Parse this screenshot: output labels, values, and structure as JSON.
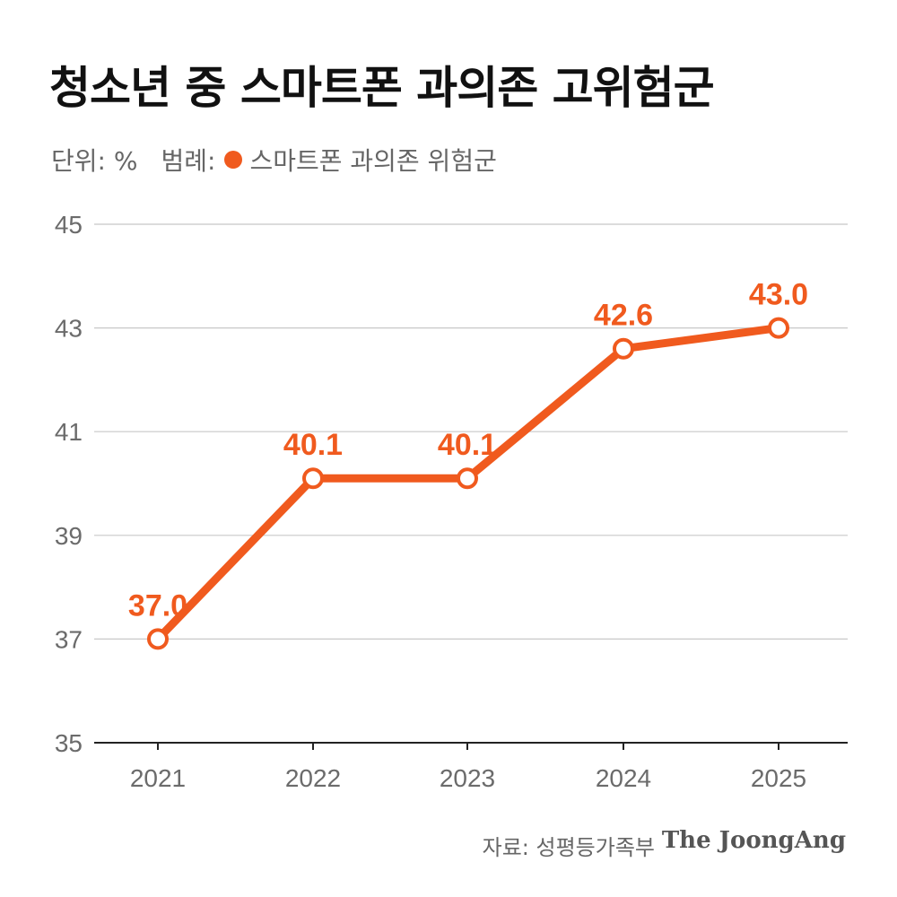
{
  "title": "청소년 중 스마트폰 과의존 고위험군",
  "unit_text": "단위: %",
  "legend_prefix": "범례:",
  "legend_label": "스마트폰 과의존 위험군",
  "source_text": "자료: 성평등가족부",
  "brand": "The JoongAng",
  "colors": {
    "series": "#F05A1E",
    "grid": "#c8c8c8",
    "axis": "#222222",
    "tick_text": "#6b6b6b"
  },
  "chart_data": {
    "type": "line",
    "categories": [
      "2021",
      "2022",
      "2023",
      "2024",
      "2025"
    ],
    "series": [
      {
        "name": "스마트폰 과의존 위험군",
        "values": [
          37.0,
          40.1,
          40.1,
          42.6,
          43.0
        ],
        "data_labels": [
          "37.0",
          "40.1",
          "40.1",
          "42.6",
          "43.0"
        ]
      }
    ],
    "yticks": [
      "35",
      "37",
      "39",
      "41",
      "43",
      "45"
    ],
    "ylim": [
      35,
      45
    ],
    "grid": true,
    "legend": "top-left"
  }
}
